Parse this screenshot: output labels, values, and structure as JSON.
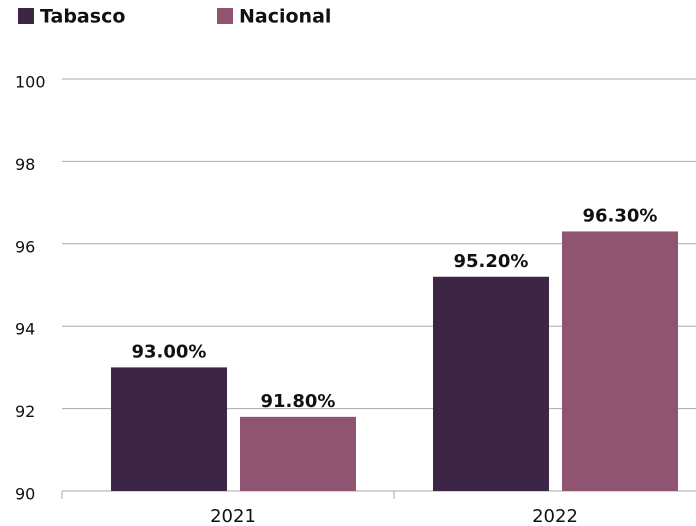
{
  "chart_data": {
    "type": "bar",
    "categories": [
      "2021",
      "2022"
    ],
    "series": [
      {
        "name": "Tabasco",
        "color": "#3d2645",
        "values": [
          93.0,
          95.2
        ],
        "value_labels": [
          "93.00%",
          "95.20%"
        ]
      },
      {
        "name": "Nacional",
        "color": "#8f546f",
        "values": [
          91.8,
          96.3
        ],
        "value_labels": [
          "91.80%",
          "96.30%"
        ]
      }
    ],
    "ylim": [
      90,
      100
    ],
    "yticks": [
      90,
      92,
      94,
      96,
      98,
      100
    ],
    "grid": true
  }
}
